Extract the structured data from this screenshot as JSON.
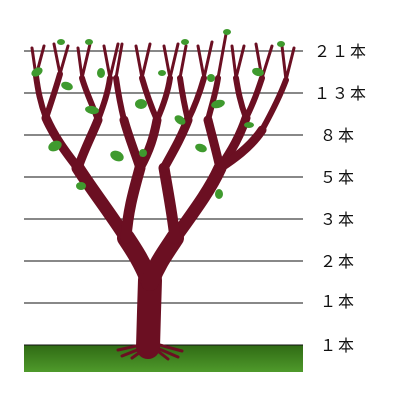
{
  "levels": [
    {
      "label": "２１本",
      "count": 21
    },
    {
      "label": "１３本",
      "count": 13
    },
    {
      "label": "８本",
      "count": 8
    },
    {
      "label": "５本",
      "count": 5
    },
    {
      "label": "３本",
      "count": 3
    },
    {
      "label": "２本",
      "count": 2
    },
    {
      "label": "１本",
      "count": 1
    },
    {
      "label": "１本",
      "count": 1
    }
  ],
  "colors": {
    "trunk": "#6b0f22",
    "leaf": "#3f9a2e",
    "ground_top": "#2f6a14",
    "ground_bottom": "#4f9a2b",
    "line": "#111111"
  }
}
